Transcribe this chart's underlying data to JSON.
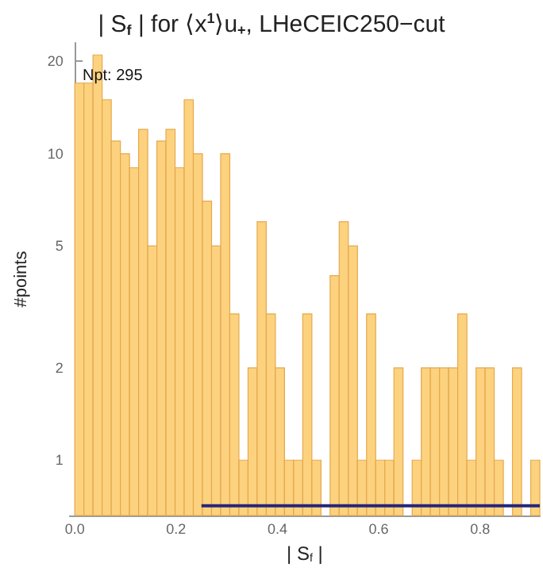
{
  "chart_data": {
    "type": "histogram",
    "title": "| S$_{f}$ | for ⟨x$^{1}$⟩u$_{+}$, LHeCEIC250−cut",
    "xlabel": "| S$_{f}$ |",
    "ylabel": "#points",
    "annotations": [
      "Npt: 295"
    ],
    "bins": [
      0,
      0.018,
      0.036,
      0.054,
      0.072,
      0.09,
      0.108,
      0.126,
      0.144,
      0.162,
      0.18,
      0.198,
      0.216,
      0.234,
      0.252,
      0.27,
      0.288,
      0.306,
      0.324,
      0.342,
      0.36,
      0.378,
      0.396,
      0.414,
      0.432,
      0.45,
      0.468,
      0.486,
      0.504,
      0.522,
      0.54,
      0.558,
      0.576,
      0.594,
      0.612,
      0.63,
      0.648,
      0.666,
      0.684,
      0.702,
      0.72,
      0.738,
      0.756,
      0.774,
      0.792,
      0.81,
      0.828,
      0.846,
      0.864,
      0.882,
      0.9,
      0.918
    ],
    "values": [
      17,
      17,
      21,
      15,
      11,
      10,
      9,
      12,
      5,
      11,
      12,
      9,
      15,
      10,
      7,
      5,
      10,
      3,
      1,
      2,
      6,
      3,
      2,
      1,
      1,
      3,
      1,
      null,
      4,
      6,
      5,
      1,
      3,
      1,
      1,
      2,
      null,
      1,
      2,
      2,
      2,
      2,
      3,
      1,
      2,
      2,
      1,
      null,
      2,
      null,
      1
    ],
    "color": "#fcd27f",
    "series": [
      {
        "type": "line",
        "color": "#26267a",
        "x": [
          0.25,
          0.918
        ],
        "values": [
          0.71,
          0.71
        ]
      }
    ],
    "log": "y",
    "xlim": [
      -0.01,
      0.918
    ],
    "ylim": [
      0.66,
      23
    ],
    "xticks": [
      {
        "value": 0,
        "label": "0.0"
      },
      0.2,
      0.4,
      0.6,
      0.8
    ],
    "yticks": [
      1,
      2,
      5,
      10,
      20
    ],
    "grid": false
  }
}
